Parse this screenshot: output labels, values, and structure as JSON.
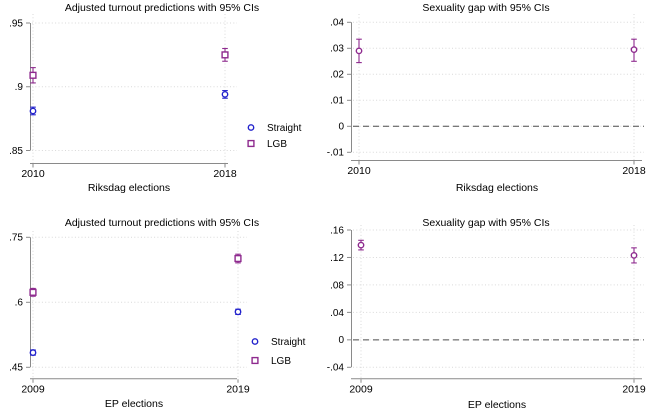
{
  "figure": {
    "background": "#ffffff"
  },
  "palette": {
    "straight": "#2222cc",
    "lgb": "#8e2a8e",
    "grid": "#d9d9d9",
    "axis": "#8a8a8a",
    "zero_line": "#4d4d4d",
    "text": "#000000"
  },
  "chart_data": [
    {
      "id": "riksdag-turnout",
      "type": "scatter",
      "title": "Adjusted turnout predictions with 95% CIs",
      "xlabel": "Riksdag elections",
      "categories": [
        "2010",
        "2018"
      ],
      "yticks": [
        {
          "v": 0.85,
          "label": ".85"
        },
        {
          "v": 0.9,
          "label": ".9"
        },
        {
          "v": 0.95,
          "label": ".95"
        }
      ],
      "ylim": [
        0.84,
        0.957
      ],
      "grid": true,
      "zero_line": false,
      "legend": {
        "show": true,
        "position": "right"
      },
      "series": [
        {
          "name": "Straight",
          "marker": "circle",
          "color": "#2222cc",
          "values": [
            0.881,
            0.894
          ],
          "ci_lo": [
            0.878,
            0.891
          ],
          "ci_hi": [
            0.884,
            0.897
          ]
        },
        {
          "name": "LGB",
          "marker": "square",
          "color": "#8e2a8e",
          "values": [
            0.909,
            0.925
          ],
          "ci_lo": [
            0.903,
            0.92
          ],
          "ci_hi": [
            0.915,
            0.93
          ]
        }
      ]
    },
    {
      "id": "riksdag-gap",
      "type": "scatter",
      "title": "Sexuality gap with 95% CIs",
      "xlabel": "Riksdag elections",
      "categories": [
        "2010",
        "2018"
      ],
      "yticks": [
        {
          "v": -0.01,
          "label": "-.01"
        },
        {
          "v": 0,
          "label": "0"
        },
        {
          "v": 0.01,
          "label": ".01"
        },
        {
          "v": 0.02,
          "label": ".02"
        },
        {
          "v": 0.03,
          "label": ".03"
        },
        {
          "v": 0.04,
          "label": ".04"
        }
      ],
      "ylim": [
        -0.0145,
        0.0435
      ],
      "grid": true,
      "zero_line": true,
      "legend": {
        "show": false
      },
      "series": [
        {
          "name": "Sexuality gap",
          "marker": "circle",
          "color": "#8e2a8e",
          "values": [
            0.029,
            0.0295
          ],
          "ci_lo": [
            0.0245,
            0.025
          ],
          "ci_hi": [
            0.0335,
            0.0335
          ]
        }
      ]
    },
    {
      "id": "ep-turnout",
      "type": "scatter",
      "title": "Adjusted turnout predictions with 95% CIs",
      "xlabel": "EP elections",
      "categories": [
        "2009",
        "2019"
      ],
      "yticks": [
        {
          "v": 0.45,
          "label": ".45"
        },
        {
          "v": 0.6,
          "label": ".6"
        },
        {
          "v": 0.75,
          "label": ".75"
        }
      ],
      "ylim": [
        0.425,
        0.765
      ],
      "grid": true,
      "zero_line": false,
      "legend": {
        "show": true,
        "position": "right"
      },
      "series": [
        {
          "name": "Straight",
          "marker": "circle",
          "color": "#2222cc",
          "values": [
            0.484,
            0.578
          ],
          "ci_lo": [
            0.478,
            0.572
          ],
          "ci_hi": [
            0.49,
            0.584
          ]
        },
        {
          "name": "LGB",
          "marker": "square",
          "color": "#8e2a8e",
          "values": [
            0.623,
            0.701
          ],
          "ci_lo": [
            0.614,
            0.691
          ],
          "ci_hi": [
            0.632,
            0.711
          ]
        }
      ]
    },
    {
      "id": "ep-gap",
      "type": "scatter",
      "title": "Sexuality gap with 95% CIs",
      "xlabel": "EP elections",
      "categories": [
        "2009",
        "2019"
      ],
      "yticks": [
        {
          "v": -0.04,
          "label": "-.04"
        },
        {
          "v": 0,
          "label": "0"
        },
        {
          "v": 0.04,
          "label": ".04"
        },
        {
          "v": 0.08,
          "label": ".08"
        },
        {
          "v": 0.12,
          "label": ".12"
        },
        {
          "v": 0.16,
          "label": ".16"
        }
      ],
      "ylim": [
        -0.043,
        0.168
      ],
      "grid": true,
      "zero_line": true,
      "legend": {
        "show": false
      },
      "series": [
        {
          "name": "Sexuality gap",
          "marker": "circle",
          "color": "#8e2a8e",
          "values": [
            0.138,
            0.123
          ],
          "ci_lo": [
            0.131,
            0.112
          ],
          "ci_hi": [
            0.145,
            0.134
          ]
        }
      ]
    }
  ]
}
